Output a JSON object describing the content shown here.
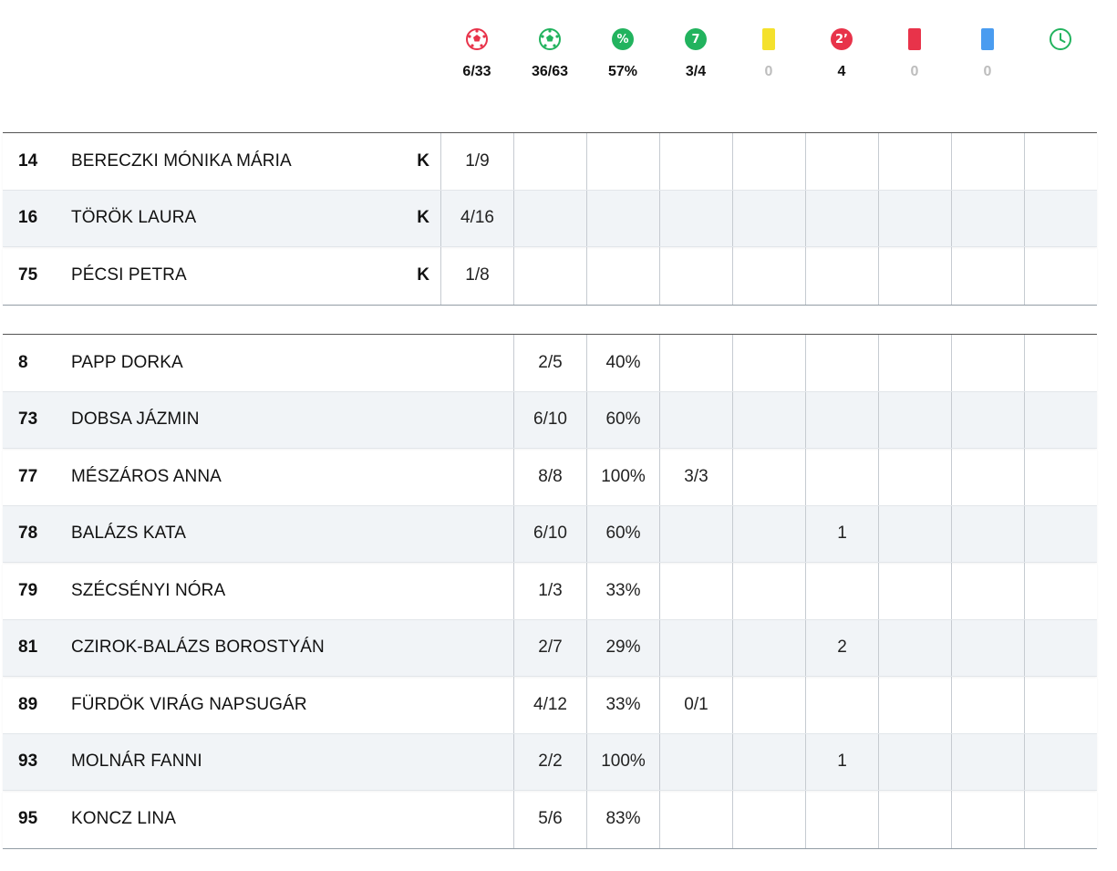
{
  "summary": [
    {
      "icon": "ball-red-icon",
      "value": "6/33",
      "zero": false,
      "color": "#e8334a"
    },
    {
      "icon": "ball-green-icon",
      "value": "36/63",
      "zero": false,
      "color": "#22b35e"
    },
    {
      "icon": "percent-icon",
      "glyph": "%",
      "value": "57%",
      "zero": false,
      "color": "#22b35e"
    },
    {
      "icon": "seven-meter-icon",
      "glyph": "7",
      "value": "3/4",
      "zero": false,
      "color": "#22b35e"
    },
    {
      "icon": "yellow-card-icon",
      "value": "0",
      "zero": true,
      "color": "#f4e12c"
    },
    {
      "icon": "two-minute-icon",
      "glyph": "2’",
      "value": "4",
      "zero": false,
      "color": "#e8334a"
    },
    {
      "icon": "red-card-icon",
      "value": "0",
      "zero": true,
      "color": "#e8334a"
    },
    {
      "icon": "blue-card-icon",
      "value": "0",
      "zero": true,
      "color": "#4a9cf0"
    },
    {
      "icon": "clock-icon",
      "value": "",
      "zero": false,
      "color": "#22b35e"
    }
  ],
  "goalkeepers": [
    {
      "num": "14",
      "name": "BERECZKI MÓNIKA MÁRIA",
      "k": "K",
      "saves": "1/9"
    },
    {
      "num": "16",
      "name": "TÖRÖK LAURA",
      "k": "K",
      "saves": "4/16"
    },
    {
      "num": "75",
      "name": "PÉCSI PETRA",
      "k": "K",
      "saves": "1/8"
    }
  ],
  "players": [
    {
      "num": "8",
      "name": "PAPP DORKA",
      "goals": "2/5",
      "pct": "40%",
      "seven": "",
      "yellow": "",
      "two": "",
      "red": "",
      "blue": "",
      "time": ""
    },
    {
      "num": "73",
      "name": "DOBSA JÁZMIN",
      "goals": "6/10",
      "pct": "60%",
      "seven": "",
      "yellow": "",
      "two": "",
      "red": "",
      "blue": "",
      "time": ""
    },
    {
      "num": "77",
      "name": "MÉSZÁROS ANNA",
      "goals": "8/8",
      "pct": "100%",
      "seven": "3/3",
      "yellow": "",
      "two": "",
      "red": "",
      "blue": "",
      "time": ""
    },
    {
      "num": "78",
      "name": "BALÁZS KATA",
      "goals": "6/10",
      "pct": "60%",
      "seven": "",
      "yellow": "",
      "two": "1",
      "red": "",
      "blue": "",
      "time": ""
    },
    {
      "num": "79",
      "name": "SZÉCSÉNYI NÓRA",
      "goals": "1/3",
      "pct": "33%",
      "seven": "",
      "yellow": "",
      "two": "",
      "red": "",
      "blue": "",
      "time": ""
    },
    {
      "num": "81",
      "name": "CZIROK-BALÁZS BOROSTYÁN",
      "goals": "2/7",
      "pct": "29%",
      "seven": "",
      "yellow": "",
      "two": "2",
      "red": "",
      "blue": "",
      "time": ""
    },
    {
      "num": "89",
      "name": "FÜRDÖK VIRÁG NAPSUGÁR",
      "goals": "4/12",
      "pct": "33%",
      "seven": "0/1",
      "yellow": "",
      "two": "",
      "red": "",
      "blue": "",
      "time": ""
    },
    {
      "num": "93",
      "name": "MOLNÁR FANNI",
      "goals": "2/2",
      "pct": "100%",
      "seven": "",
      "yellow": "",
      "two": "1",
      "red": "",
      "blue": "",
      "time": ""
    },
    {
      "num": "95",
      "name": "KONCZ LINA",
      "goals": "5/6",
      "pct": "83%",
      "seven": "",
      "yellow": "",
      "two": "",
      "red": "",
      "blue": "",
      "time": ""
    }
  ]
}
